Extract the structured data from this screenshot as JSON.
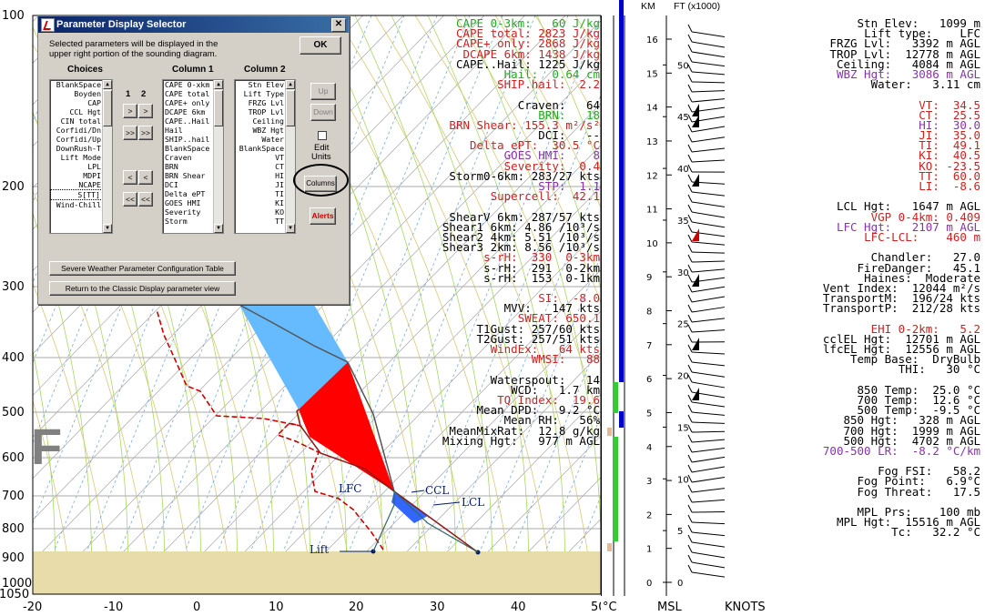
{
  "skewt": {
    "pressure_labels": [
      "100",
      "200",
      "300",
      "400",
      "500",
      "600",
      "700",
      "800",
      "900",
      "1000",
      "1050"
    ],
    "temp_labels": [
      "-20",
      "-10",
      "0",
      "10",
      "20",
      "30",
      "40",
      "50"
    ],
    "unit_label": "°C",
    "labels": {
      "lfc": "LFC",
      "ccl": "CCL",
      "lcl": "LCL",
      "lift": "Lift"
    },
    "colors": {
      "cape": "#ff0000",
      "cin": "#66bbff",
      "dewpoint": "#cc0000",
      "ground": "#e8dcab"
    }
  },
  "dialog": {
    "title": "Parameter Display Selector",
    "instructions_line1": "Selected parameters will be displayed in the",
    "instructions_line2": "upper right portion of the sounding diagram.",
    "ok_label": "OK",
    "choices_header": "Choices",
    "col1_header": "Column 1",
    "col2_header": "Column 2",
    "num1": "1",
    "num2": "2",
    "move_right": ">",
    "move_right_all": ">>",
    "move_left": "<",
    "move_left_all": "<<",
    "choices": [
      "BlankSpace",
      "Boyden",
      "CAP",
      "CCL Hgt",
      "CIN total",
      "Corfidi/Dn",
      "Corfidi/Up",
      "DownRush-T",
      "Lift Mode",
      "LPL",
      "MDPI",
      "NCAPE",
      "S[TT]",
      "Wind-Chill"
    ],
    "column1": [
      "CAPE 0-xkm",
      "CAPE total",
      "CAPE+ only",
      "DCAPE 6km",
      "CAPE..Hail",
      "Hail",
      "SHIP..hail",
      "BlankSpace",
      "Craven",
      "BRN",
      "BRN Shear",
      "DCI",
      "Delta ePT",
      "GOES HMI",
      "Severity",
      "Storm"
    ],
    "column2": [
      "Stn Elev",
      "Lift Type",
      "FRZG Lvl",
      "TROP Lvl",
      "Ceiling",
      "WBZ Hgt",
      "Water",
      "BlankSpace",
      "VT",
      "CT",
      "HI",
      "JI",
      "TI",
      "KI",
      "KO",
      "TT"
    ],
    "up_label": "Up",
    "down_label": "Down",
    "edit_units_line1": "Edit",
    "edit_units_line2": "Units",
    "columns_label": "Columns",
    "alerts_label": "Alerts",
    "config_table_label": "Severe Weather Parameter Configuration Table",
    "classic_view_label": "Return to the Classic Display parameter view"
  },
  "params_col1": [
    {
      "text": "CAPE 0-3km:   60 J/kg",
      "color": "#22aa22"
    },
    {
      "text": "CAPE total: 2823 J/kg",
      "color": "#cc2222"
    },
    {
      "text": "CAPE+ only: 2868 J/kg",
      "color": "#cc2222"
    },
    {
      "text": "DCAPE 6km: 1438 J/kg",
      "color": "#cc2222"
    },
    {
      "text": "CAPE..Hail: 1225 J/kg",
      "color": "#000000"
    },
    {
      "text": "Hail:  0.64 cm",
      "color": "#22aa22"
    },
    {
      "text": "SHIP.hail:  2.2",
      "color": "#cc2222"
    },
    {
      "text": "",
      "color": "#000000"
    },
    {
      "text": "Craven:   64",
      "color": "#000000"
    },
    {
      "text": "BRN:   18",
      "color": "#22aa22"
    },
    {
      "text": "BRN Shear: 155.3 m²/s²",
      "color": "#cc2222"
    },
    {
      "text": "DCI:   --",
      "color": "#000000"
    },
    {
      "text": "Delta ePT:  30.5 °C",
      "color": "#cc2222"
    },
    {
      "text": "GOES HMI:    8",
      "color": "#8833aa"
    },
    {
      "text": "Severity:  0.4",
      "color": "#cc2222"
    },
    {
      "text": "Storm0-6km: 283/27 kts",
      "color": "#000000"
    },
    {
      "text": "STP:  1.1",
      "color": "#8833aa"
    },
    {
      "text": "Supercell:  42.1",
      "color": "#cc2222"
    },
    {
      "text": "",
      "color": "#000000"
    },
    {
      "text": "ShearV 6km: 287/57 kts",
      "color": "#000000"
    },
    {
      "text": "Shear1 6km: 4.86 /10³/s",
      "color": "#000000"
    },
    {
      "text": "Shear2 4km: 5.51 /10³/s",
      "color": "#000000"
    },
    {
      "text": "Shear3 2km: 8.56 /10³/s",
      "color": "#000000"
    },
    {
      "text": "s-rH:  330  0-3km",
      "color": "#cc2222"
    },
    {
      "text": "s-rH:  291  0-2km",
      "color": "#000000"
    },
    {
      "text": "s-rH:  153  0-1km",
      "color": "#000000"
    },
    {
      "text": "",
      "color": "#000000"
    },
    {
      "text": "SI:  -8.0",
      "color": "#cc2222"
    },
    {
      "text": "MVV:   147 kts",
      "color": "#000000"
    },
    {
      "text": "SWEAT: 650.1",
      "color": "#cc2222"
    },
    {
      "text": "T1Gust: 257/60 kts",
      "color": "#000000"
    },
    {
      "text": "T2Gust: 257/51 kts",
      "color": "#000000"
    },
    {
      "text": "WindEx:   64 kts",
      "color": "#cc2222"
    },
    {
      "text": "WMSI:   88",
      "color": "#cc2222"
    },
    {
      "text": "",
      "color": "#000000"
    },
    {
      "text": "Waterspout:   14",
      "color": "#000000"
    },
    {
      "text": "WCD:   1.7 km",
      "color": "#000000"
    },
    {
      "text": "TQ Index:  19.6",
      "color": "#cc2222"
    },
    {
      "text": "Mean DPD:   9.2 °C",
      "color": "#000000"
    },
    {
      "text": "Mean RH:   56%",
      "color": "#000000"
    },
    {
      "text": "MeanMixRat:  12.8 g/kg",
      "color": "#000000"
    },
    {
      "text": "Mixing Hgt:   977 m AGL",
      "color": "#000000"
    }
  ],
  "params_col3": [
    {
      "text": "Stn Elev:   1099 m",
      "color": "#000000"
    },
    {
      "text": "Lift type:    LFC",
      "color": "#000000"
    },
    {
      "text": "FRZG Lvl:   3392 m AGL",
      "color": "#000000"
    },
    {
      "text": "TROP Lvl:  12778 m AGL",
      "color": "#000000"
    },
    {
      "text": "Ceiling:   4084 m AGL",
      "color": "#000000"
    },
    {
      "text": "WBZ Hgt:   3086 m AGL",
      "color": "#8833aa"
    },
    {
      "text": "Water:   3.11 cm",
      "color": "#000000"
    },
    {
      "text": "",
      "color": "#000000"
    },
    {
      "text": "VT:  34.5",
      "color": "#cc2222"
    },
    {
      "text": "CT:  25.5",
      "color": "#cc2222"
    },
    {
      "text": "HI:  30.0",
      "color": "#8833aa"
    },
    {
      "text": "JI:  35.0",
      "color": "#cc2222"
    },
    {
      "text": "TI:  49.1",
      "color": "#cc2222"
    },
    {
      "text": "KI:  40.5",
      "color": "#cc2222"
    },
    {
      "text": "KO: -23.5",
      "color": "#cc2222"
    },
    {
      "text": "TT:  60.0",
      "color": "#cc2222"
    },
    {
      "text": "LI:  -8.6",
      "color": "#cc2222"
    },
    {
      "text": "",
      "color": "#000000"
    },
    {
      "text": "LCL Hgt:   1647 m AGL",
      "color": "#000000"
    },
    {
      "text": "VGP 0-4km: 0.409",
      "color": "#cc2222"
    },
    {
      "text": "LFC Hgt:   2107 m AGL",
      "color": "#8833aa"
    },
    {
      "text": "LFC-LCL:    460 m",
      "color": "#cc2222"
    },
    {
      "text": "",
      "color": "#000000"
    },
    {
      "text": "Chandler:   27.0",
      "color": "#000000"
    },
    {
      "text": "FireDanger:   45.1",
      "color": "#000000"
    },
    {
      "text": "Haines:  Moderate",
      "color": "#000000"
    },
    {
      "text": "Vent Index:  12044 m²/s",
      "color": "#000000"
    },
    {
      "text": "TransportM:  196/24 kts",
      "color": "#000000"
    },
    {
      "text": "TransportP:  212/28 kts",
      "color": "#000000"
    },
    {
      "text": "",
      "color": "#000000"
    },
    {
      "text": "EHI 0-2km:   5.2",
      "color": "#cc2222"
    },
    {
      "text": "cclEL Hgt:  12701 m AGL",
      "color": "#000000"
    },
    {
      "text": "lfcEL Hgt:  12556 m AGL",
      "color": "#000000"
    },
    {
      "text": "Temp Base:  DryBulb",
      "color": "#000000"
    },
    {
      "text": "THI:   30 °C",
      "color": "#000000"
    },
    {
      "text": "",
      "color": "#000000"
    },
    {
      "text": "850 Temp:  25.0 °C",
      "color": "#000000"
    },
    {
      "text": "700 Temp:  12.6 °C",
      "color": "#000000"
    },
    {
      "text": "500 Temp:  -9.5 °C",
      "color": "#000000"
    },
    {
      "text": "850 Hgt:   328 m AGL",
      "color": "#000000"
    },
    {
      "text": "700 Hgt:  1999 m AGL",
      "color": "#000000"
    },
    {
      "text": "500 Hgt:  4702 m AGL",
      "color": "#000000"
    },
    {
      "text": "700-500 LR:  -8.2 °C/km",
      "color": "#8833aa"
    },
    {
      "text": "",
      "color": "#000000"
    },
    {
      "text": "Fog FSI:   58.2",
      "color": "#000000"
    },
    {
      "text": "Fog Point:   6.9°C",
      "color": "#000000"
    },
    {
      "text": "Fog Threat:   17.5",
      "color": "#000000"
    },
    {
      "text": "",
      "color": "#000000"
    },
    {
      "text": "MPL Prs:    100 mb",
      "color": "#000000"
    },
    {
      "text": "MPL Hgt:  15516 m AGL",
      "color": "#000000"
    },
    {
      "text": "Tc:   32.2 °C",
      "color": "#000000"
    }
  ],
  "hodo": {
    "km_header": "KM",
    "ft_header": "FT (x1000)",
    "km_labels": [
      "16",
      "15",
      "14",
      "13",
      "12",
      "11",
      "10",
      "9",
      "8",
      "7",
      "6",
      "5",
      "4",
      "3",
      "2",
      "1",
      "0"
    ],
    "ft_labels": [
      "50",
      "45",
      "40",
      "35",
      "30",
      "25",
      "20",
      "15",
      "10",
      "5",
      "0"
    ],
    "msl_label": "MSL",
    "knots_label": "KNOTS"
  },
  "bigletter": "F"
}
